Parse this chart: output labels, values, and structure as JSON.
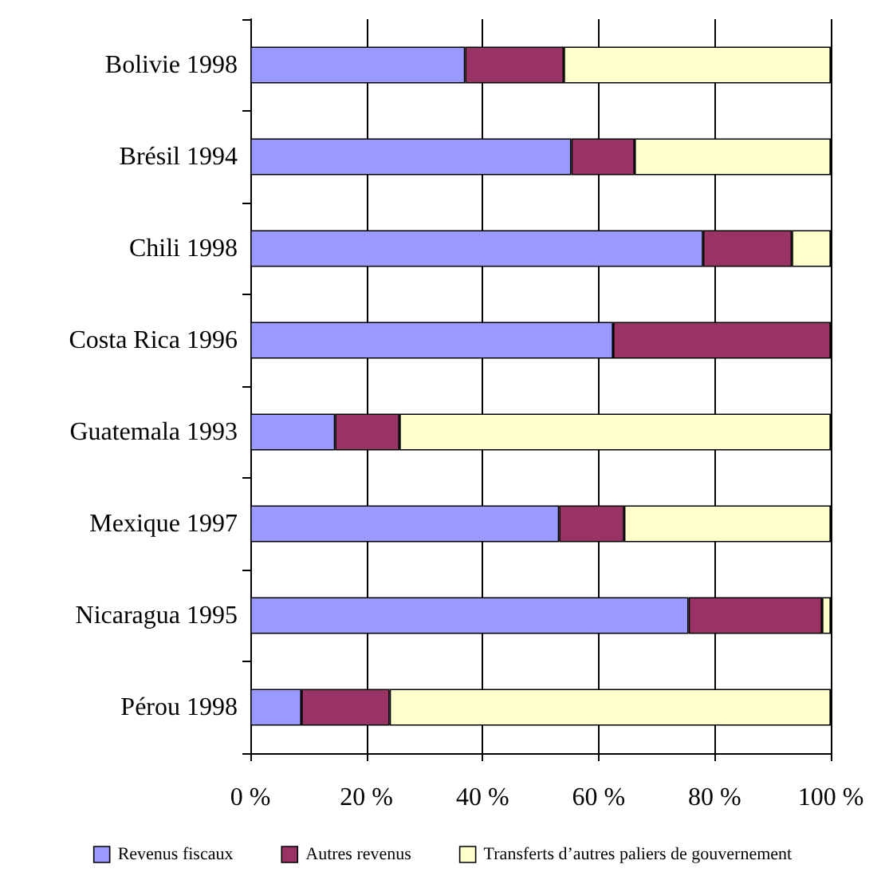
{
  "chart_data": {
    "type": "bar",
    "orientation": "horizontal",
    "stacked": true,
    "categories": [
      "Bolivie 1998",
      "Brésil 1994",
      "Chili 1998",
      "Costa Rica 1996",
      "Guatemala 1993",
      "Mexique 1997",
      "Nicaragua 1995",
      "Pérou 1998"
    ],
    "series": [
      {
        "name": "Revenus fiscaux",
        "color": "#9999ff",
        "values": [
          37,
          55.3,
          78,
          62.5,
          14.6,
          53.2,
          75.5,
          8.8
        ]
      },
      {
        "name": "Autres revenus",
        "color": "#993366",
        "values": [
          17,
          10.9,
          15.3,
          37.5,
          11.1,
          11.2,
          23,
          15.2
        ]
      },
      {
        "name": "Transferts d’autres paliers de gouvernement",
        "color": "#ffffcc",
        "values": [
          46,
          33.8,
          6.7,
          null,
          74.3,
          35.6,
          1.5,
          76
        ]
      }
    ],
    "xlim": [
      0,
      100
    ],
    "xticks": [
      {
        "value": 0,
        "label": "0 %"
      },
      {
        "value": 20,
        "label": "20 %"
      },
      {
        "value": 40,
        "label": "40 %"
      },
      {
        "value": 60,
        "label": "60 %"
      },
      {
        "value": 80,
        "label": "80 %"
      },
      {
        "value": 100,
        "label": "100 %"
      }
    ],
    "grid": "x",
    "legend": "bottom"
  }
}
